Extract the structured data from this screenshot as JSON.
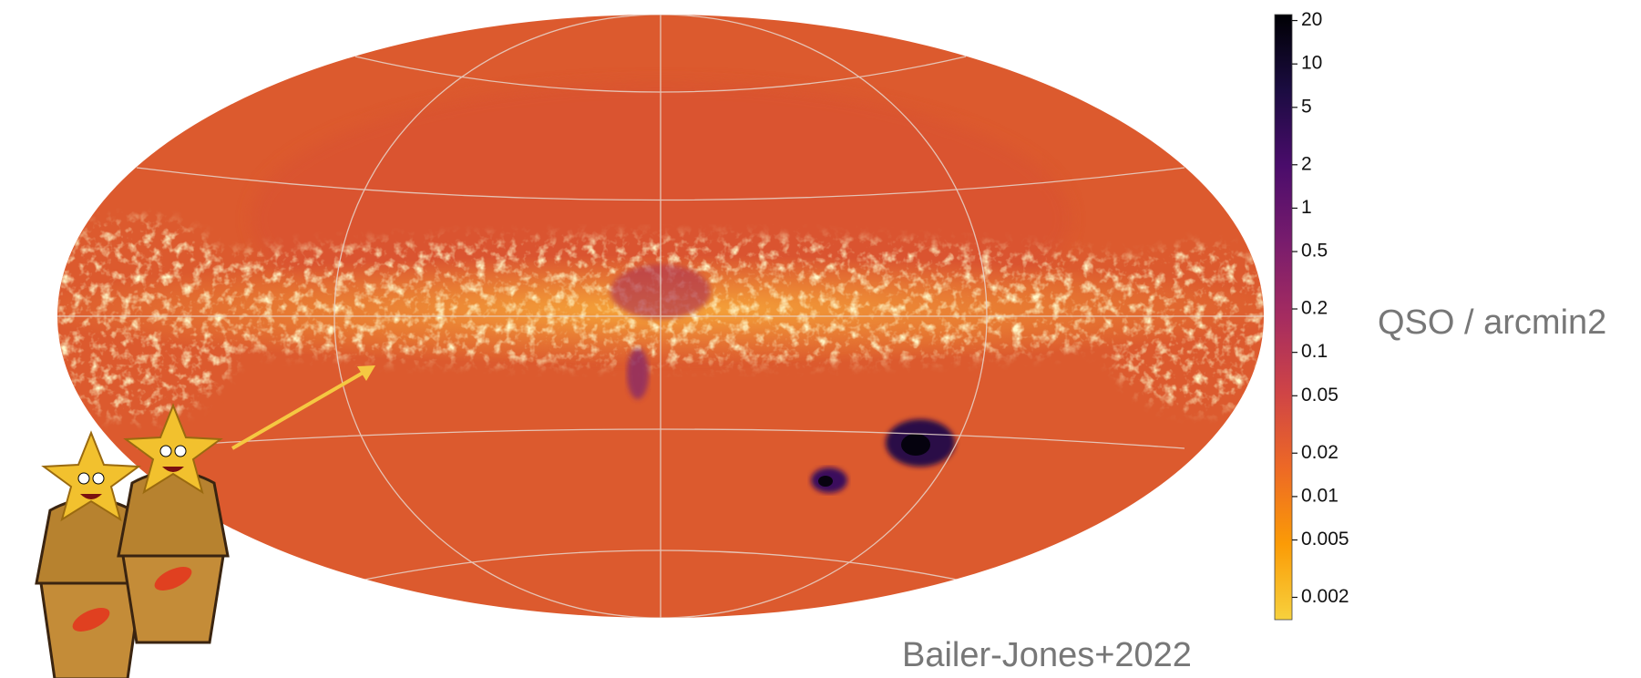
{
  "chart_data": {
    "type": "heatmap",
    "colorbar": {
      "log": true,
      "lim": [
        0.0014,
        22
      ],
      "ticks": [
        0.002,
        0.005,
        0.01,
        0.02,
        0.05,
        0.1,
        0.2,
        0.5,
        1,
        2,
        5,
        10,
        20
      ],
      "label": "QSO / arcmin2",
      "colors": [
        "#f7d13d",
        "#fb9b06",
        "#ed6925",
        "#cf4446",
        "#a52c60",
        "#781c6d",
        "#4a0c6b",
        "#1b0c41",
        "#000004"
      ]
    },
    "annotation": "Bailer-Jones+2022"
  }
}
